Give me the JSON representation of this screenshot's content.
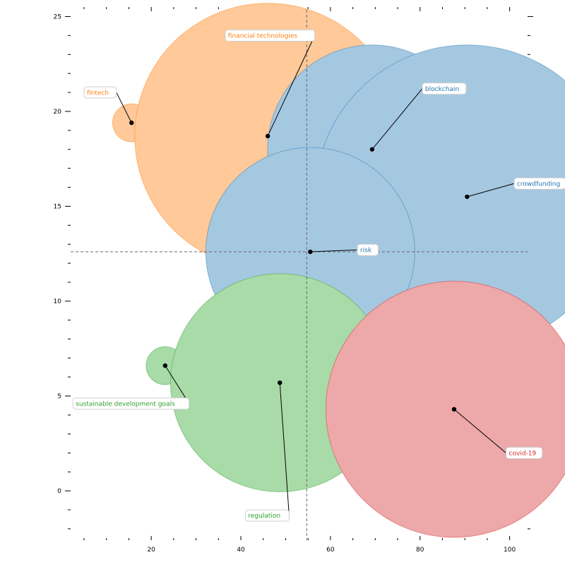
{
  "chart_data": {
    "type": "scatter",
    "title": "",
    "xlabel": "",
    "ylabel": "",
    "xlim": [
      2,
      104
    ],
    "ylim": [
      -2.6,
      25.5
    ],
    "x_major_ticks": [
      20,
      40,
      60,
      80,
      100
    ],
    "y_major_ticks": [
      0,
      5,
      10,
      15,
      20,
      25
    ],
    "grid": false,
    "reference_lines": {
      "x": 54.7,
      "y": 12.6
    },
    "clusters": [
      {
        "color": "#1f77b4",
        "fill": "#a5c8e1"
      },
      {
        "color": "#ff7f0e",
        "fill": "#ffc999"
      },
      {
        "color": "#2ca02c",
        "fill": "#a8dba8"
      },
      {
        "color": "#d62728",
        "fill": "#eda8a9"
      }
    ],
    "points": [
      {
        "label": "fintech",
        "x": 15.6,
        "y": 19.4,
        "size": 2,
        "cluster": 1,
        "label_x": 5.0,
        "label_y": 21.0
      },
      {
        "label": "financial technologies",
        "x": 46.0,
        "y": 18.7,
        "size": 14,
        "cluster": 1,
        "label_x": 36.5,
        "label_y": 24.0
      },
      {
        "label": "blockchain",
        "x": 69.3,
        "y": 18.0,
        "size": 11,
        "cluster": 0,
        "label_x": 80.5,
        "label_y": 21.2
      },
      {
        "label": "crowdfunding",
        "x": 90.5,
        "y": 15.5,
        "size": 16,
        "cluster": 0,
        "label_x": 101.0,
        "label_y": 16.2
      },
      {
        "label": "risk",
        "x": 55.5,
        "y": 12.6,
        "size": 11,
        "cluster": 0,
        "label_x": 66.0,
        "label_y": 12.7
      },
      {
        "label": "sustainable development goals",
        "x": 23.1,
        "y": 6.6,
        "size": 2,
        "cluster": 2,
        "label_x": 2.5,
        "label_y": 4.6
      },
      {
        "label": "regulation",
        "x": 48.7,
        "y": 5.7,
        "size": 11.5,
        "cluster": 2,
        "label_x": 41.0,
        "label_y": -1.3
      },
      {
        "label": "covid-19",
        "x": 87.6,
        "y": 4.3,
        "size": 13.5,
        "cluster": 3,
        "label_x": 99.2,
        "label_y": 2.0
      }
    ]
  }
}
